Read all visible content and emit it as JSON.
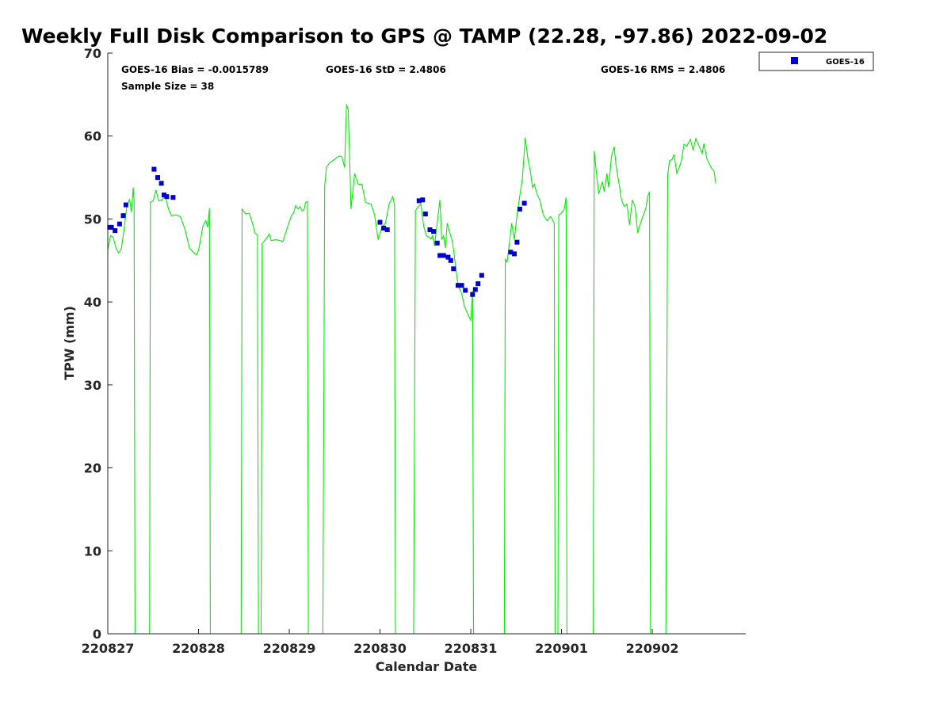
{
  "chart_data": {
    "type": "scatter",
    "title": "Weekly Full Disk Comparison to GPS @ TAMP (22.28, -97.86) 2022-09-02",
    "xlabel": "Calendar Date",
    "ylabel": "TPW (mm)",
    "xlim": [
      0,
      7.03
    ],
    "ylim": [
      0,
      70
    ],
    "x_tick_values": [
      0,
      1,
      2,
      3,
      4,
      5,
      6
    ],
    "x_tick_labels": [
      "220827",
      "220828",
      "220829",
      "220830",
      "220831",
      "220901",
      "220902"
    ],
    "y_tick_values": [
      0,
      10,
      20,
      30,
      40,
      50,
      60,
      70
    ],
    "y_tick_labels": [
      "0",
      "10",
      "20",
      "30",
      "40",
      "50",
      "60",
      "70"
    ],
    "stats": {
      "bias": "GOES-16 Bias = -0.0015789",
      "std": "GOES-16 StD = 2.4806",
      "rms": "GOES-16 RMS = 2.4806",
      "sample_size": "Sample Size = 38"
    },
    "legend": {
      "position": "top-right",
      "entries": [
        "GOES-16"
      ]
    },
    "colors": {
      "gps_line": "#00ee00",
      "goes_marker": "#0000cc",
      "axis": "#262626"
    },
    "series": [
      {
        "name": "GPS",
        "style": "line",
        "segments": [
          [
            [
              0.0,
              46.3
            ],
            [
              0.03,
              48.0
            ],
            [
              0.06,
              47.8
            ],
            [
              0.09,
              46.5
            ],
            [
              0.12,
              45.9
            ],
            [
              0.15,
              46.4
            ],
            [
              0.18,
              48.8
            ],
            [
              0.21,
              51.5
            ],
            [
              0.24,
              52.4
            ],
            [
              0.26,
              50.8
            ],
            [
              0.28,
              53.8
            ],
            [
              0.29,
              52.0
            ],
            [
              0.3,
              0
            ]
          ],
          [
            [
              0.46,
              0
            ],
            [
              0.47,
              52.0
            ],
            [
              0.5,
              52.2
            ],
            [
              0.53,
              53.5
            ],
            [
              0.56,
              52.2
            ],
            [
              0.6,
              52.3
            ],
            [
              0.63,
              52.9
            ],
            [
              0.67,
              51.2
            ],
            [
              0.7,
              50.4
            ],
            [
              0.75,
              50.5
            ],
            [
              0.8,
              50.3
            ],
            [
              0.85,
              48.8
            ],
            [
              0.9,
              46.5
            ],
            [
              0.95,
              45.9
            ],
            [
              0.98,
              45.7
            ],
            [
              1.0,
              46.2
            ],
            [
              1.05,
              49.2
            ],
            [
              1.08,
              49.8
            ],
            [
              1.1,
              49.0
            ],
            [
              1.12,
              51.3
            ],
            [
              1.13,
              0
            ]
          ],
          [
            [
              1.47,
              0
            ],
            [
              1.48,
              51.2
            ],
            [
              1.52,
              50.6
            ],
            [
              1.56,
              50.7
            ],
            [
              1.6,
              49.3
            ],
            [
              1.62,
              48.3
            ],
            [
              1.65,
              48.1
            ],
            [
              1.66,
              0
            ]
          ],
          [
            [
              1.69,
              0
            ],
            [
              1.7,
              47.0
            ],
            [
              1.75,
              47.7
            ],
            [
              1.78,
              48.2
            ],
            [
              1.8,
              47.4
            ],
            [
              1.85,
              47.5
            ],
            [
              1.9,
              47.4
            ],
            [
              1.93,
              47.3
            ],
            [
              1.98,
              49.0
            ],
            [
              2.02,
              50.3
            ],
            [
              2.05,
              50.8
            ],
            [
              2.07,
              51.6
            ],
            [
              2.1,
              51.2
            ],
            [
              2.12,
              51.5
            ],
            [
              2.14,
              51.0
            ],
            [
              2.16,
              51.0
            ],
            [
              2.18,
              52.0
            ],
            [
              2.2,
              52.1
            ],
            [
              2.21,
              0
            ]
          ],
          [
            [
              2.37,
              0
            ],
            [
              2.39,
              54.0
            ],
            [
              2.41,
              56.3
            ],
            [
              2.45,
              56.8
            ],
            [
              2.5,
              57.2
            ],
            [
              2.55,
              57.6
            ],
            [
              2.58,
              57.5
            ],
            [
              2.61,
              56.2
            ],
            [
              2.63,
              63.8
            ],
            [
              2.65,
              63.2
            ],
            [
              2.68,
              51.2
            ],
            [
              2.72,
              55.5
            ],
            [
              2.76,
              54.2
            ],
            [
              2.8,
              54.2
            ],
            [
              2.84,
              52.0
            ],
            [
              2.9,
              51.8
            ],
            [
              2.94,
              50.5
            ],
            [
              2.98,
              47.5
            ],
            [
              3.02,
              49.0
            ],
            [
              3.06,
              49.5
            ],
            [
              3.1,
              51.8
            ],
            [
              3.14,
              52.7
            ],
            [
              3.16,
              51.7
            ],
            [
              3.17,
              0
            ]
          ],
          [
            [
              3.37,
              0
            ],
            [
              3.39,
              51.0
            ],
            [
              3.42,
              51.5
            ],
            [
              3.45,
              51.8
            ],
            [
              3.48,
              49.2
            ],
            [
              3.51,
              48.0
            ],
            [
              3.54,
              47.8
            ],
            [
              3.56,
              47.6
            ],
            [
              3.58,
              48.0
            ],
            [
              3.6,
              46.8
            ],
            [
              3.63,
              49.5
            ],
            [
              3.66,
              52.3
            ],
            [
              3.68,
              47.5
            ],
            [
              3.7,
              48.0
            ],
            [
              3.72,
              46.5
            ],
            [
              3.74,
              49.5
            ],
            [
              3.77,
              48.3
            ],
            [
              3.8,
              47.2
            ],
            [
              3.83,
              44.5
            ],
            [
              3.86,
              42.0
            ],
            [
              3.9,
              41.0
            ],
            [
              3.93,
              39.5
            ],
            [
              3.96,
              38.7
            ],
            [
              4.0,
              37.8
            ],
            [
              4.02,
              41.3
            ],
            [
              4.03,
              0
            ]
          ],
          [
            [
              4.37,
              0
            ],
            [
              4.38,
              45.2
            ],
            [
              4.4,
              44.8
            ],
            [
              4.42,
              46.5
            ],
            [
              4.45,
              49.5
            ],
            [
              4.48,
              47.5
            ],
            [
              4.51,
              50.5
            ],
            [
              4.54,
              52.8
            ],
            [
              4.57,
              55.0
            ],
            [
              4.6,
              59.8
            ],
            [
              4.63,
              57.2
            ],
            [
              4.66,
              55.5
            ],
            [
              4.68,
              53.8
            ],
            [
              4.7,
              54.2
            ],
            [
              4.73,
              53.0
            ],
            [
              4.76,
              52.3
            ],
            [
              4.8,
              50.5
            ],
            [
              4.84,
              49.8
            ],
            [
              4.88,
              50.3
            ],
            [
              4.9,
              49.9
            ],
            [
              4.92,
              49.5
            ],
            [
              4.93,
              0
            ]
          ],
          [
            [
              4.96,
              0
            ],
            [
              4.97,
              50.5
            ],
            [
              5.0,
              50.7
            ],
            [
              5.03,
              51.2
            ],
            [
              5.05,
              52.6
            ],
            [
              5.06,
              0
            ]
          ],
          [
            [
              5.35,
              0
            ],
            [
              5.36,
              58.2
            ],
            [
              5.38,
              56.0
            ],
            [
              5.41,
              53.0
            ],
            [
              5.45,
              54.5
            ],
            [
              5.47,
              53.3
            ],
            [
              5.5,
              55.5
            ],
            [
              5.52,
              53.8
            ],
            [
              5.55,
              57.5
            ],
            [
              5.58,
              58.7
            ],
            [
              5.6,
              56.5
            ],
            [
              5.63,
              54.5
            ],
            [
              5.66,
              52.4
            ],
            [
              5.69,
              51.5
            ],
            [
              5.72,
              51.8
            ],
            [
              5.75,
              49.3
            ],
            [
              5.78,
              52.3
            ],
            [
              5.81,
              51.5
            ],
            [
              5.84,
              48.3
            ],
            [
              5.87,
              49.5
            ],
            [
              5.9,
              50.4
            ],
            [
              5.93,
              51.3
            ],
            [
              5.95,
              52.7
            ],
            [
              5.97,
              53.3
            ],
            [
              5.98,
              0
            ]
          ],
          [
            [
              6.15,
              0
            ],
            [
              6.17,
              55.3
            ],
            [
              6.19,
              57.0
            ],
            [
              6.22,
              57.2
            ],
            [
              6.24,
              57.8
            ],
            [
              6.27,
              55.5
            ],
            [
              6.3,
              56.3
            ],
            [
              6.32,
              57.0
            ],
            [
              6.35,
              59.0
            ],
            [
              6.38,
              58.8
            ],
            [
              6.42,
              59.6
            ],
            [
              6.45,
              58.3
            ],
            [
              6.48,
              59.7
            ],
            [
              6.52,
              58.7
            ],
            [
              6.55,
              57.9
            ],
            [
              6.57,
              59.1
            ],
            [
              6.6,
              57.3
            ],
            [
              6.63,
              56.6
            ],
            [
              6.66,
              56.0
            ],
            [
              6.68,
              55.8
            ],
            [
              6.7,
              54.3
            ]
          ]
        ]
      },
      {
        "name": "GOES-16",
        "style": "marker",
        "points": [
          [
            0.02,
            49.0
          ],
          [
            0.04,
            49.0
          ],
          [
            0.08,
            48.6
          ],
          [
            0.13,
            49.4
          ],
          [
            0.17,
            50.4
          ],
          [
            0.2,
            51.7
          ],
          [
            0.51,
            56.0
          ],
          [
            0.55,
            55.0
          ],
          [
            0.59,
            54.3
          ],
          [
            0.62,
            52.9
          ],
          [
            0.65,
            52.7
          ],
          [
            0.72,
            52.6
          ],
          [
            3.0,
            49.6
          ],
          [
            3.04,
            48.9
          ],
          [
            3.08,
            48.7
          ],
          [
            3.43,
            52.2
          ],
          [
            3.47,
            52.3
          ],
          [
            3.5,
            50.6
          ],
          [
            3.55,
            48.7
          ],
          [
            3.59,
            48.5
          ],
          [
            3.63,
            47.1
          ],
          [
            3.66,
            45.6
          ],
          [
            3.7,
            45.6
          ],
          [
            3.75,
            45.4
          ],
          [
            3.78,
            45.0
          ],
          [
            3.81,
            44.0
          ],
          [
            3.86,
            42.0
          ],
          [
            3.9,
            42.0
          ],
          [
            3.94,
            41.4
          ],
          [
            4.02,
            40.9
          ],
          [
            4.05,
            41.5
          ],
          [
            4.08,
            42.2
          ],
          [
            4.12,
            43.2
          ],
          [
            4.44,
            46.0
          ],
          [
            4.48,
            45.8
          ],
          [
            4.51,
            47.2
          ],
          [
            4.54,
            51.2
          ],
          [
            4.59,
            51.9
          ]
        ]
      }
    ]
  }
}
